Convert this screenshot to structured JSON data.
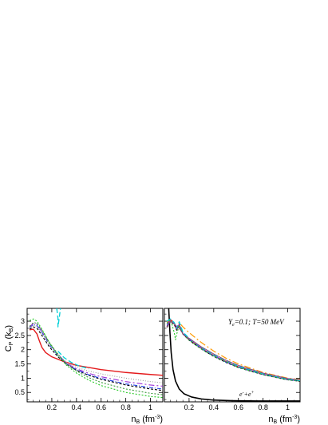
{
  "chart_data": [
    {
      "type": "line",
      "panel": "left",
      "ylabel": "C",
      "ylabel_sub": "P",
      "ylabel_unit": " (k",
      "ylabel_unit_sub": "B",
      "ylabel_close": ")",
      "xlabel": "n",
      "xlabel_sub": "B",
      "xlabel_unit": " (fm",
      "xlabel_unit_sup": "-3",
      "xlabel_close": ")",
      "xlim": [
        0.0,
        1.1
      ],
      "ylim": [
        0.17,
        3.45
      ],
      "xticks": [
        0.2,
        0.4,
        0.6,
        0.8,
        1.0
      ],
      "xtick_labels": [
        "0.2",
        "0.4",
        "0.6",
        "0.8",
        "1"
      ],
      "yticks": [
        0.5,
        1.0,
        1.5,
        2.0,
        2.5,
        3.0
      ],
      "ytick_labels": [
        "0.5",
        "1",
        "1.5",
        "2",
        "2.5",
        "3"
      ],
      "series": [
        {
          "color": "#e41a1c",
          "dash": "",
          "width": 1.4,
          "x": [
            0.02,
            0.05,
            0.08,
            0.1,
            0.12,
            0.15,
            0.2,
            0.3,
            0.4,
            0.6,
            0.8,
            1.0,
            1.1
          ],
          "y": [
            2.7,
            2.72,
            2.55,
            2.3,
            2.08,
            1.9,
            1.75,
            1.58,
            1.45,
            1.3,
            1.2,
            1.13,
            1.1
          ]
        },
        {
          "color": "#000000",
          "dash": "3,2",
          "width": 1.1,
          "x": [
            0.02,
            0.05,
            0.08,
            0.12,
            0.18,
            0.25,
            0.32,
            0.4,
            0.5,
            0.6,
            0.8,
            1.0,
            1.1
          ],
          "y": [
            2.72,
            2.8,
            2.75,
            2.5,
            2.1,
            1.75,
            1.48,
            1.28,
            1.1,
            0.96,
            0.76,
            0.62,
            0.57
          ]
        },
        {
          "color": "#1f3fe6",
          "dash": "5,2,1,2",
          "width": 1.1,
          "x": [
            0.02,
            0.05,
            0.08,
            0.12,
            0.18,
            0.25,
            0.32,
            0.4,
            0.5,
            0.6,
            0.8,
            1.0,
            1.1
          ],
          "y": [
            2.78,
            2.88,
            2.85,
            2.6,
            2.18,
            1.8,
            1.5,
            1.3,
            1.12,
            0.99,
            0.8,
            0.67,
            0.62
          ]
        },
        {
          "color": "#9b2fd6",
          "dash": "7,3,2,3",
          "width": 1.1,
          "x": [
            0.02,
            0.05,
            0.08,
            0.12,
            0.18,
            0.25,
            0.32,
            0.4,
            0.5,
            0.6,
            0.8,
            1.0,
            1.1
          ],
          "y": [
            2.8,
            2.92,
            2.9,
            2.65,
            2.22,
            1.83,
            1.52,
            1.33,
            1.17,
            1.05,
            0.88,
            0.76,
            0.72
          ]
        },
        {
          "color": "#3a9a3a",
          "dash": "2,2",
          "width": 1.1,
          "x": [
            0.02,
            0.05,
            0.08,
            0.12,
            0.18,
            0.25,
            0.32,
            0.4,
            0.5,
            0.6,
            0.8,
            1.0,
            1.1
          ],
          "y": [
            2.82,
            2.95,
            2.93,
            2.68,
            2.25,
            1.85,
            1.5,
            1.25,
            1.02,
            0.85,
            0.62,
            0.47,
            0.42
          ]
        },
        {
          "color": "#9a9a9a",
          "dash": "1,2",
          "width": 1.1,
          "x": [
            0.02,
            0.05,
            0.08,
            0.12,
            0.18,
            0.25,
            0.32,
            0.4,
            0.5,
            0.6,
            0.8,
            1.0,
            1.1
          ],
          "y": [
            2.76,
            2.86,
            2.82,
            2.58,
            2.2,
            1.84,
            1.55,
            1.38,
            1.25,
            1.15,
            1.0,
            0.88,
            0.84
          ]
        },
        {
          "color": "#22c922",
          "dash": "2,2",
          "width": 1.1,
          "x": [
            0.02,
            0.05,
            0.08,
            0.12,
            0.18,
            0.25,
            0.32,
            0.4,
            0.5,
            0.6,
            0.8,
            1.0,
            1.1
          ],
          "y": [
            3.02,
            3.08,
            3.0,
            2.72,
            2.25,
            1.8,
            1.45,
            1.18,
            0.93,
            0.74,
            0.5,
            0.36,
            0.32
          ]
        },
        {
          "color": "#00d0d8",
          "dash": "6,3",
          "width": 1.3,
          "x": [
            0.24,
            0.25,
            0.25,
            0.26,
            0.27
          ],
          "y": [
            3.45,
            3.1,
            2.8,
            3.1,
            3.45
          ]
        },
        {
          "color": "#00d0d8",
          "dash": "6,3",
          "width": 1.3,
          "x": [
            0.25,
            0.3,
            0.36,
            0.42,
            0.5
          ],
          "y": [
            1.95,
            1.72,
            1.55,
            1.43,
            1.33
          ]
        }
      ]
    },
    {
      "type": "line",
      "panel": "right",
      "annotation": "Y",
      "annotation_sub": "e",
      "annotation_rest": "=0.1; T=50 MeV",
      "curve_label": "e",
      "curve_label_sup1": "-",
      "curve_label_mid": "+e",
      "curve_label_sup2": "+",
      "xlabel": "n",
      "xlabel_sub": "B",
      "xlabel_unit": " (fm",
      "xlabel_unit_sup": "-3",
      "xlabel_close": ")",
      "xlim": [
        0.0,
        1.1
      ],
      "ylim": [
        0.17,
        3.45
      ],
      "xticks": [
        0.2,
        0.4,
        0.6,
        0.8,
        1.0
      ],
      "xtick_labels": [
        "0.2",
        "0.4",
        "0.6",
        "0.8",
        "1"
      ],
      "series": [
        {
          "color": "#000000",
          "dash": "",
          "width": 1.6,
          "x": [
            0.035,
            0.045,
            0.055,
            0.07,
            0.09,
            0.12,
            0.16,
            0.22,
            0.3,
            0.4,
            0.55,
            0.75,
            1.0,
            1.1
          ],
          "y": [
            3.45,
            2.6,
            1.9,
            1.3,
            0.9,
            0.62,
            0.45,
            0.34,
            0.27,
            0.23,
            0.21,
            0.2,
            0.2,
            0.2
          ]
        },
        {
          "color": "#ff9a00",
          "dash": "8,3,2,3",
          "width": 1.2,
          "x": [
            0.02,
            0.05,
            0.08,
            0.1,
            0.12,
            0.15,
            0.2,
            0.3,
            0.4,
            0.5,
            0.6,
            0.8,
            1.0,
            1.1
          ],
          "y": [
            2.95,
            3.02,
            2.9,
            2.7,
            2.95,
            2.8,
            2.6,
            2.25,
            1.95,
            1.7,
            1.5,
            1.2,
            1.0,
            0.95
          ]
        },
        {
          "color": "#e41a1c",
          "dash": "",
          "width": 1.2,
          "x": [
            0.02,
            0.05,
            0.08,
            0.1,
            0.12,
            0.15,
            0.2,
            0.3,
            0.4,
            0.5,
            0.6,
            0.8,
            1.0,
            1.1
          ],
          "y": [
            2.8,
            3.05,
            2.95,
            2.7,
            2.88,
            2.55,
            2.35,
            2.05,
            1.8,
            1.58,
            1.4,
            1.14,
            0.95,
            0.9
          ]
        },
        {
          "color": "#000000",
          "dash": "3,2",
          "width": 1.0,
          "x": [
            0.02,
            0.05,
            0.08,
            0.1,
            0.12,
            0.15,
            0.2,
            0.3,
            0.4,
            0.5,
            0.6,
            0.8,
            1.0,
            1.1
          ],
          "y": [
            2.78,
            2.98,
            2.88,
            2.68,
            2.85,
            2.55,
            2.33,
            2.02,
            1.76,
            1.55,
            1.37,
            1.12,
            0.94,
            0.89
          ]
        },
        {
          "color": "#1f3fe6",
          "dash": "5,2,1,2",
          "width": 1.0,
          "x": [
            0.02,
            0.05,
            0.08,
            0.1,
            0.12,
            0.15,
            0.2,
            0.3,
            0.4,
            0.5,
            0.6,
            0.8,
            1.0,
            1.1
          ],
          "y": [
            2.85,
            3.0,
            2.92,
            2.72,
            2.88,
            2.58,
            2.35,
            2.04,
            1.78,
            1.56,
            1.38,
            1.13,
            0.95,
            0.9
          ]
        },
        {
          "color": "#9b2fd6",
          "dash": "7,3,2,3",
          "width": 1.0,
          "x": [
            0.02,
            0.05,
            0.08,
            0.1,
            0.12,
            0.15,
            0.2,
            0.3,
            0.4,
            0.5,
            0.6,
            0.8,
            1.0,
            1.1
          ],
          "y": [
            2.9,
            3.04,
            2.96,
            2.75,
            2.9,
            2.6,
            2.38,
            2.06,
            1.8,
            1.58,
            1.4,
            1.14,
            0.96,
            0.91
          ]
        },
        {
          "color": "#22c922",
          "dash": "2,2",
          "width": 1.1,
          "x": [
            0.02,
            0.05,
            0.08,
            0.09,
            0.1,
            0.12,
            0.15,
            0.2,
            0.3,
            0.4,
            0.6,
            0.8,
            1.0,
            1.1
          ],
          "y": [
            2.92,
            3.05,
            2.6,
            2.35,
            2.55,
            2.85,
            2.55,
            2.34,
            2.02,
            1.77,
            1.38,
            1.13,
            0.95,
            0.9
          ]
        },
        {
          "color": "#00d0d8",
          "dash": "6,3",
          "width": 1.3,
          "x": [
            0.02,
            0.05,
            0.08,
            0.1,
            0.12,
            0.15,
            0.2,
            0.3,
            0.4,
            0.6,
            0.8,
            1.0,
            1.1
          ],
          "y": [
            3.0,
            3.08,
            2.95,
            2.75,
            2.98,
            2.62,
            2.4,
            2.08,
            1.82,
            1.42,
            1.16,
            0.97,
            0.92
          ]
        },
        {
          "color": "#8a4a7a",
          "dash": "",
          "width": 1.0,
          "x": [
            0.02,
            0.05,
            0.08,
            0.12,
            0.16,
            0.2,
            0.3,
            0.4,
            0.5,
            0.6,
            0.8,
            1.0,
            1.1
          ],
          "y": [
            2.8,
            3.0,
            2.9,
            2.75,
            2.5,
            2.4,
            2.1,
            1.85,
            1.63,
            1.45,
            1.18,
            0.99,
            0.94
          ]
        }
      ]
    }
  ]
}
